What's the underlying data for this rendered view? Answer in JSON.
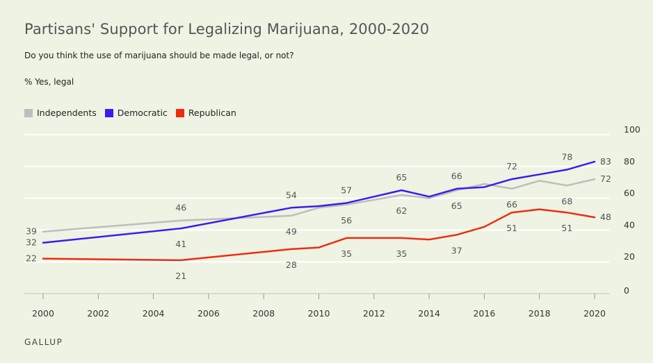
{
  "chart_data": {
    "type": "line",
    "title": "Partisans' Support for Legalizing Marijuana, 2000-2020",
    "subtitle": "Do you think the use of marijuana should be made legal, or not?",
    "ylabel": "% Yes, legal",
    "source": "GALLUP",
    "ylim": [
      0,
      100
    ],
    "xlim": [
      2000,
      2020
    ],
    "yticks": [
      0,
      20,
      40,
      60,
      80,
      100
    ],
    "xticks": [
      2000,
      2002,
      2004,
      2006,
      2008,
      2010,
      2012,
      2014,
      2016,
      2018,
      2020
    ],
    "grid": "horizontal",
    "legend_position": "top-left",
    "series": [
      {
        "name": "Independents",
        "color": "#bdbdbd",
        "x": [
          2000,
          2005,
          2009,
          2010,
          2011,
          2013,
          2014,
          2015,
          2016,
          2017,
          2018,
          2019,
          2020
        ],
        "values": [
          39,
          46,
          49,
          54,
          56,
          62,
          60,
          65,
          69,
          66,
          71,
          68,
          72
        ],
        "labels": [
          {
            "x": 2000,
            "y": 39,
            "text": "39",
            "pos": "left"
          },
          {
            "x": 2005,
            "y": 46,
            "text": "46",
            "pos": "above"
          },
          {
            "x": 2009,
            "y": 49,
            "text": "49",
            "pos": "below"
          },
          {
            "x": 2011,
            "y": 56,
            "text": "56",
            "pos": "below"
          },
          {
            "x": 2013,
            "y": 62,
            "text": "62",
            "pos": "below"
          },
          {
            "x": 2015,
            "y": 65,
            "text": "65",
            "pos": "below"
          },
          {
            "x": 2017,
            "y": 66,
            "text": "66",
            "pos": "below"
          },
          {
            "x": 2019,
            "y": 68,
            "text": "68",
            "pos": "below"
          },
          {
            "x": 2020,
            "y": 72,
            "text": "72",
            "pos": "right"
          }
        ]
      },
      {
        "name": "Democratic",
        "color": "#3a1cf2",
        "x": [
          2000,
          2005,
          2009,
          2010,
          2011,
          2013,
          2014,
          2015,
          2016,
          2017,
          2018,
          2019,
          2020
        ],
        "values": [
          32,
          41,
          54,
          55,
          57,
          65,
          61,
          66,
          67,
          72,
          75,
          78,
          83
        ],
        "labels": [
          {
            "x": 2000,
            "y": 32,
            "text": "32",
            "pos": "left"
          },
          {
            "x": 2005,
            "y": 41,
            "text": "41",
            "pos": "below"
          },
          {
            "x": 2009,
            "y": 54,
            "text": "54",
            "pos": "above"
          },
          {
            "x": 2011,
            "y": 57,
            "text": "57",
            "pos": "above"
          },
          {
            "x": 2013,
            "y": 65,
            "text": "65",
            "pos": "above"
          },
          {
            "x": 2015,
            "y": 66,
            "text": "66",
            "pos": "above"
          },
          {
            "x": 2017,
            "y": 72,
            "text": "72",
            "pos": "above"
          },
          {
            "x": 2019,
            "y": 78,
            "text": "78",
            "pos": "above"
          },
          {
            "x": 2020,
            "y": 83,
            "text": "83",
            "pos": "right"
          }
        ]
      },
      {
        "name": "Republican",
        "color": "#ef2b10",
        "x": [
          2000,
          2005,
          2009,
          2010,
          2011,
          2013,
          2014,
          2015,
          2016,
          2017,
          2018,
          2019,
          2020
        ],
        "values": [
          22,
          21,
          28,
          29,
          35,
          35,
          34,
          37,
          42,
          51,
          53,
          51,
          48
        ],
        "labels": [
          {
            "x": 2000,
            "y": 22,
            "text": "22",
            "pos": "left"
          },
          {
            "x": 2005,
            "y": 21,
            "text": "21",
            "pos": "below"
          },
          {
            "x": 2009,
            "y": 28,
            "text": "28",
            "pos": "below"
          },
          {
            "x": 2011,
            "y": 35,
            "text": "35",
            "pos": "below"
          },
          {
            "x": 2013,
            "y": 35,
            "text": "35",
            "pos": "below"
          },
          {
            "x": 2015,
            "y": 37,
            "text": "37",
            "pos": "below"
          },
          {
            "x": 2017,
            "y": 51,
            "text": "51",
            "pos": "below"
          },
          {
            "x": 2019,
            "y": 51,
            "text": "51",
            "pos": "below"
          },
          {
            "x": 2020,
            "y": 48,
            "text": "48",
            "pos": "right"
          }
        ]
      }
    ]
  }
}
